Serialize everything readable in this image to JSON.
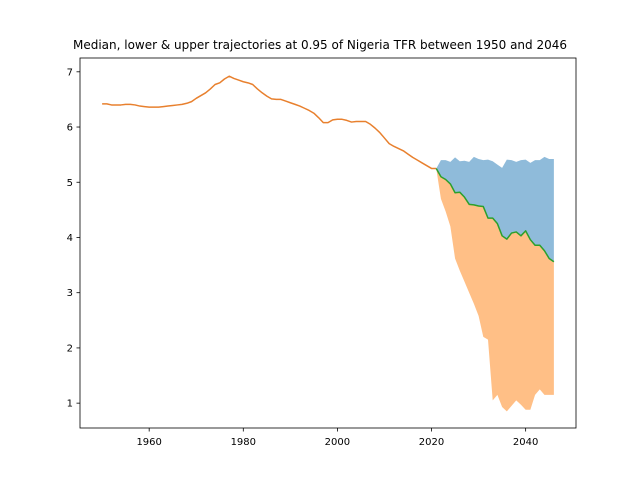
{
  "chart_data": {
    "type": "line",
    "title": "Median, lower & upper trajectories at 0.95 of Nigeria TFR between 1950 and 2046",
    "xlabel": "",
    "ylabel": "",
    "xlim": [
      1945.3,
      2050.7
    ],
    "ylim": [
      0.55,
      7.25
    ],
    "xticks": [
      1960,
      1980,
      2000,
      2020,
      2040
    ],
    "yticks": [
      1,
      2,
      3,
      4,
      5,
      6,
      7
    ],
    "grid": false,
    "colors": {
      "upper_band": "#8fbbda",
      "lower_band": "#ffbf86",
      "history": "#e8802e",
      "median": "#2ca02c"
    },
    "history": {
      "x": [
        1950,
        1951,
        1952,
        1953,
        1954,
        1955,
        1956,
        1957,
        1958,
        1959,
        1960,
        1961,
        1962,
        1963,
        1964,
        1965,
        1966,
        1967,
        1968,
        1969,
        1970,
        1971,
        1972,
        1973,
        1974,
        1975,
        1976,
        1977,
        1978,
        1979,
        1980,
        1981,
        1982,
        1983,
        1984,
        1985,
        1986,
        1987,
        1988,
        1989,
        1990,
        1991,
        1992,
        1993,
        1994,
        1995,
        1996,
        1997,
        1998,
        1999,
        2000,
        2001,
        2002,
        2003,
        2004,
        2005,
        2006,
        2007,
        2008,
        2009,
        2010,
        2011,
        2012,
        2013,
        2014,
        2015,
        2016,
        2017,
        2018,
        2019,
        2020,
        2021
      ],
      "y": [
        6.42,
        6.42,
        6.4,
        6.4,
        6.4,
        6.41,
        6.41,
        6.4,
        6.38,
        6.37,
        6.36,
        6.36,
        6.36,
        6.37,
        6.38,
        6.39,
        6.4,
        6.41,
        6.43,
        6.46,
        6.52,
        6.57,
        6.62,
        6.69,
        6.77,
        6.8,
        6.87,
        6.92,
        6.88,
        6.85,
        6.82,
        6.8,
        6.77,
        6.69,
        6.62,
        6.56,
        6.51,
        6.5,
        6.5,
        6.47,
        6.44,
        6.41,
        6.38,
        6.34,
        6.3,
        6.25,
        6.17,
        6.08,
        6.08,
        6.13,
        6.14,
        6.14,
        6.12,
        6.09,
        6.1,
        6.1,
        6.1,
        6.05,
        5.98,
        5.9,
        5.8,
        5.7,
        5.65,
        5.61,
        5.57,
        5.51,
        5.45,
        5.4,
        5.35,
        5.3,
        5.25,
        5.25
      ]
    },
    "projection": {
      "x": [
        2021,
        2022,
        2023,
        2024,
        2025,
        2026,
        2027,
        2028,
        2029,
        2030,
        2031,
        2032,
        2033,
        2034,
        2035,
        2036,
        2037,
        2038,
        2039,
        2040,
        2041,
        2042,
        2043,
        2044,
        2045,
        2046
      ],
      "median": [
        5.25,
        5.1,
        5.05,
        4.97,
        4.81,
        4.82,
        4.73,
        4.6,
        4.59,
        4.57,
        4.56,
        4.35,
        4.35,
        4.25,
        4.03,
        3.97,
        4.08,
        4.1,
        4.03,
        4.12,
        3.96,
        3.86,
        3.86,
        3.76,
        3.62,
        3.56
      ],
      "upper": [
        5.25,
        5.4,
        5.4,
        5.37,
        5.45,
        5.38,
        5.39,
        5.37,
        5.46,
        5.42,
        5.4,
        5.41,
        5.38,
        5.32,
        5.26,
        5.41,
        5.4,
        5.37,
        5.4,
        5.41,
        5.35,
        5.4,
        5.4,
        5.46,
        5.42,
        5.42
      ],
      "lower": [
        5.25,
        4.7,
        4.47,
        4.2,
        3.62,
        3.4,
        3.2,
        3.0,
        2.8,
        2.58,
        2.2,
        2.15,
        1.05,
        1.15,
        0.93,
        0.85,
        0.95,
        1.05,
        0.97,
        0.88,
        0.88,
        1.15,
        1.25,
        1.15,
        1.15,
        1.15
      ]
    }
  }
}
